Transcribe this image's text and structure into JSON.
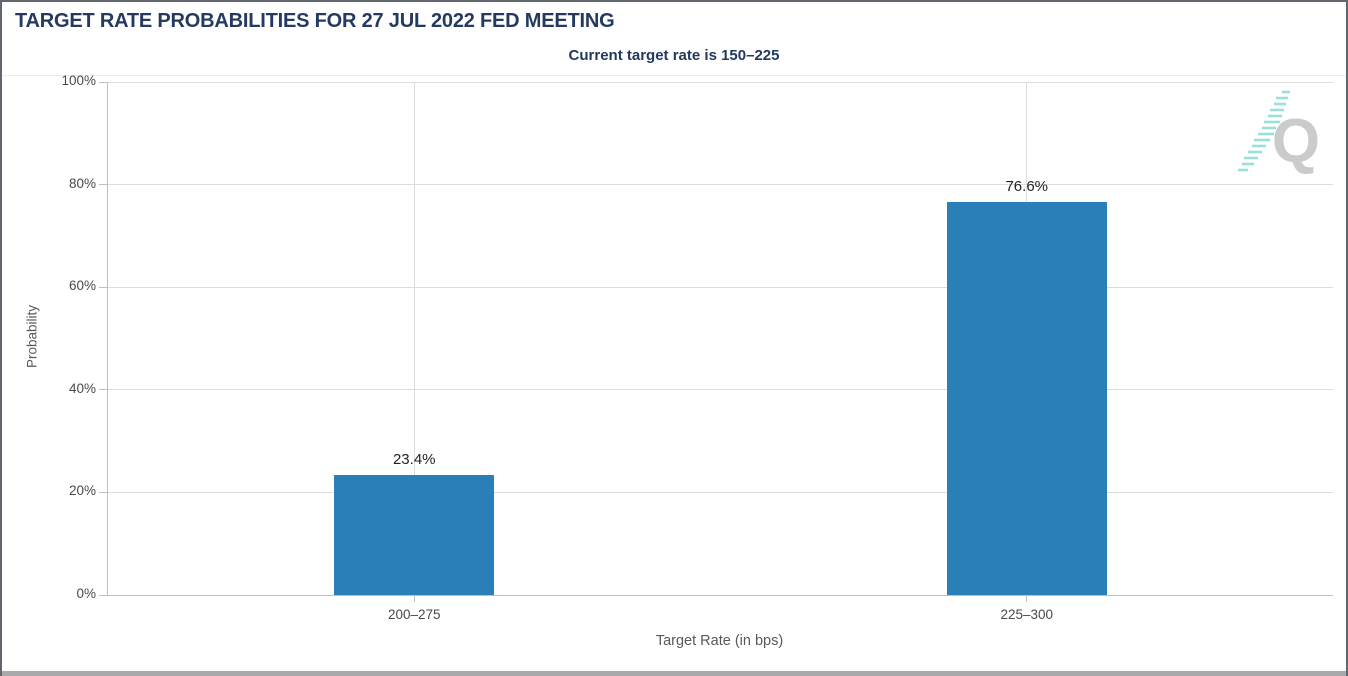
{
  "window": {
    "title": "TARGET RATE PROBABILITIES FOR 27 JUL 2022 FED MEETING",
    "subtitle": "Current target rate is 150–225"
  },
  "chart_data": {
    "type": "bar",
    "title": "TARGET RATE PROBABILITIES FOR 27 JUL 2022 FED MEETING",
    "subtitle": "Current target rate is 150–225",
    "categories": [
      "200–275",
      "225–300"
    ],
    "values": [
      23.4,
      76.6
    ],
    "value_labels": [
      "23.4%",
      "76.6%"
    ],
    "xlabel": "Target Rate (in bps)",
    "ylabel": "Probability",
    "ylim": [
      0,
      100
    ],
    "yticks": [
      0,
      20,
      40,
      60,
      80,
      100
    ],
    "ytick_labels": [
      "0%",
      "20%",
      "40%",
      "60%",
      "80%",
      "100%"
    ],
    "grid": true,
    "legend": false,
    "bar_color": "#2A7FB8"
  },
  "logo": {
    "letter": "Q",
    "q_color": "#C9CBCC",
    "dash_color": "#9ADFDC"
  },
  "colors": {
    "title_navy": "#243A61",
    "gridline": "#DCDCDC",
    "axis_line": "#BFBFBF",
    "tick_label": "#4A4A4A",
    "axis_title": "#595959",
    "value_label": "#222222",
    "bottom_strip": "#A9A9AC",
    "frame_border": "#61666F"
  }
}
